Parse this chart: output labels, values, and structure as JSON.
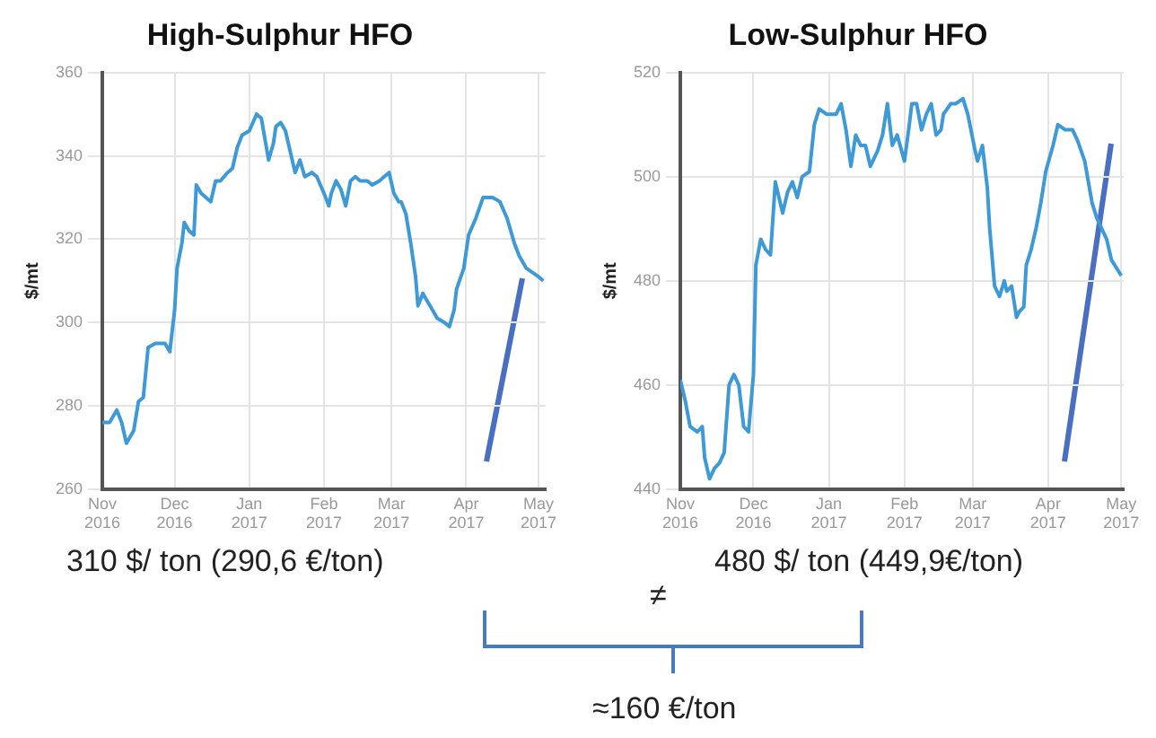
{
  "chart_data": [
    {
      "type": "line",
      "title": "High-Sulphur HFO",
      "ylabel": "$/mt",
      "grid": true,
      "xlim": [
        "2016-11-01",
        "2017-05-04"
      ],
      "ylim": [
        260,
        360
      ],
      "yticks": [
        260,
        280,
        300,
        320,
        340,
        360
      ],
      "xticks": [
        {
          "value": "2016-11-01",
          "label": "Nov 2016"
        },
        {
          "value": "2016-12-01",
          "label": "Dec 2016"
        },
        {
          "value": "2017-01-01",
          "label": "Jan 2017"
        },
        {
          "value": "2017-02-01",
          "label": "Feb 2017"
        },
        {
          "value": "2017-03-01",
          "label": "Mar 2017"
        },
        {
          "value": "2017-04-01",
          "label": "Apr 2017"
        },
        {
          "value": "2017-05-01",
          "label": "May 2017"
        }
      ],
      "annotations": [
        "310 $/ ton (290,6 €/ton)",
        "≠",
        "≈160 €/ton"
      ],
      "series": [
        {
          "color": "#3d9ad6",
          "x": [
            "2016-11-01",
            "2016-11-04",
            "2016-11-07",
            "2016-11-09",
            "2016-11-11",
            "2016-11-14",
            "2016-11-16",
            "2016-11-18",
            "2016-11-20",
            "2016-11-23",
            "2016-11-27",
            "2016-11-29",
            "2016-12-01",
            "2016-12-02",
            "2016-12-04",
            "2016-12-05",
            "2016-12-07",
            "2016-12-09",
            "2016-12-10",
            "2016-12-12",
            "2016-12-14",
            "2016-12-16",
            "2016-12-18",
            "2016-12-20",
            "2016-12-23",
            "2016-12-25",
            "2016-12-27",
            "2016-12-29",
            "2017-01-01",
            "2017-01-04",
            "2017-01-06",
            "2017-01-09",
            "2017-01-11",
            "2017-01-12",
            "2017-01-14",
            "2017-01-16",
            "2017-01-18",
            "2017-01-20",
            "2017-01-22",
            "2017-01-24",
            "2017-01-27",
            "2017-01-29",
            "2017-02-01",
            "2017-02-03",
            "2017-02-04",
            "2017-02-06",
            "2017-02-08",
            "2017-02-10",
            "2017-02-12",
            "2017-02-14",
            "2017-02-16",
            "2017-02-19",
            "2017-02-21",
            "2017-02-24",
            "2017-02-26",
            "2017-02-28",
            "2017-03-02",
            "2017-03-04",
            "2017-03-05",
            "2017-03-07",
            "2017-03-09",
            "2017-03-11",
            "2017-03-12",
            "2017-03-14",
            "2017-03-16",
            "2017-03-18",
            "2017-03-20",
            "2017-03-23",
            "2017-03-25",
            "2017-03-27",
            "2017-03-28",
            "2017-03-31",
            "2017-04-02",
            "2017-04-05",
            "2017-04-08",
            "2017-04-12",
            "2017-04-15",
            "2017-04-18",
            "2017-04-21",
            "2017-04-23",
            "2017-04-26",
            "2017-05-01",
            "2017-05-03"
          ],
          "values": [
            276,
            276,
            279,
            276,
            271,
            274,
            281,
            282,
            294,
            295,
            295,
            293,
            303,
            313,
            319,
            324,
            322,
            321,
            333,
            331,
            330,
            329,
            334,
            334,
            336,
            337,
            342,
            345,
            346,
            350,
            349,
            339,
            343,
            347,
            348,
            346,
            341,
            336,
            339,
            335,
            336,
            335,
            331,
            328,
            331,
            334,
            332,
            328,
            334,
            335,
            334,
            334,
            333,
            334,
            335,
            336,
            331,
            329,
            329,
            326,
            319,
            311,
            304,
            307,
            305,
            303,
            301,
            300,
            299,
            303,
            308,
            313,
            321,
            325,
            330,
            330,
            329,
            325,
            319,
            316,
            313,
            311,
            310
          ]
        }
      ]
    },
    {
      "type": "line",
      "title": "Low-Sulphur HFO",
      "ylabel": "$/mt",
      "grid": true,
      "xlim": [
        "2016-11-01",
        "2017-05-02"
      ],
      "ylim": [
        440,
        520
      ],
      "yticks": [
        440,
        460,
        480,
        500,
        520
      ],
      "xticks": [
        {
          "value": "2016-11-01",
          "label": "Nov 2016"
        },
        {
          "value": "2016-12-01",
          "label": "Dec 2016"
        },
        {
          "value": "2017-01-01",
          "label": "Jan 2017"
        },
        {
          "value": "2017-02-01",
          "label": "Feb 2017"
        },
        {
          "value": "2017-03-01",
          "label": "Mar 2017"
        },
        {
          "value": "2017-04-01",
          "label": "Apr 2017"
        },
        {
          "value": "2017-05-01",
          "label": "May 2017"
        }
      ],
      "annotations": [
        "480 $/ ton (449,9€/ton)"
      ],
      "series": [
        {
          "color": "#3d9ad6",
          "x": [
            "2016-11-01",
            "2016-11-03",
            "2016-11-05",
            "2016-11-08",
            "2016-11-10",
            "2016-11-11",
            "2016-11-13",
            "2016-11-15",
            "2016-11-17",
            "2016-11-19",
            "2016-11-21",
            "2016-11-23",
            "2016-11-25",
            "2016-11-27",
            "2016-11-29",
            "2016-12-01",
            "2016-12-02",
            "2016-12-04",
            "2016-12-06",
            "2016-12-08",
            "2016-12-10",
            "2016-12-11",
            "2016-12-13",
            "2016-12-15",
            "2016-12-17",
            "2016-12-19",
            "2016-12-21",
            "2016-12-24",
            "2016-12-26",
            "2016-12-28",
            "2016-12-31",
            "2017-01-04",
            "2017-01-06",
            "2017-01-08",
            "2017-01-10",
            "2017-01-12",
            "2017-01-14",
            "2017-01-16",
            "2017-01-18",
            "2017-01-21",
            "2017-01-23",
            "2017-01-25",
            "2017-01-27",
            "2017-01-29",
            "2017-02-01",
            "2017-02-03",
            "2017-02-04",
            "2017-02-06",
            "2017-02-08",
            "2017-02-10",
            "2017-02-12",
            "2017-02-14",
            "2017-02-16",
            "2017-02-17",
            "2017-02-20",
            "2017-02-22",
            "2017-02-25",
            "2017-02-27",
            "2017-03-02",
            "2017-03-03",
            "2017-03-05",
            "2017-03-07",
            "2017-03-08",
            "2017-03-10",
            "2017-03-12",
            "2017-03-14",
            "2017-03-15",
            "2017-03-17",
            "2017-03-19",
            "2017-03-20",
            "2017-03-22",
            "2017-03-23",
            "2017-03-25",
            "2017-03-27",
            "2017-03-29",
            "2017-03-31",
            "2017-04-03",
            "2017-04-05",
            "2017-04-08",
            "2017-04-11",
            "2017-04-13",
            "2017-04-16",
            "2017-04-19",
            "2017-04-21",
            "2017-04-25",
            "2017-04-27",
            "2017-05-01"
          ],
          "values": [
            461,
            457,
            452,
            451,
            452,
            446,
            442,
            444,
            445,
            447,
            460,
            462,
            460,
            452,
            451,
            462,
            483,
            488,
            486,
            485,
            499,
            497,
            493,
            497,
            499,
            496,
            500,
            501,
            510,
            513,
            512,
            512,
            514,
            509,
            502,
            508,
            506,
            506,
            502,
            505,
            508,
            514,
            506,
            508,
            503,
            510,
            514,
            514,
            509,
            512,
            514,
            508,
            509,
            512,
            514,
            514,
            515,
            512,
            505,
            503,
            506,
            498,
            490,
            479,
            477,
            480,
            478,
            479,
            473,
            474,
            475,
            483,
            486,
            490,
            495,
            501,
            506,
            510,
            509,
            509,
            507,
            503,
            495,
            492,
            488,
            484,
            481
          ]
        }
      ]
    }
  ]
}
